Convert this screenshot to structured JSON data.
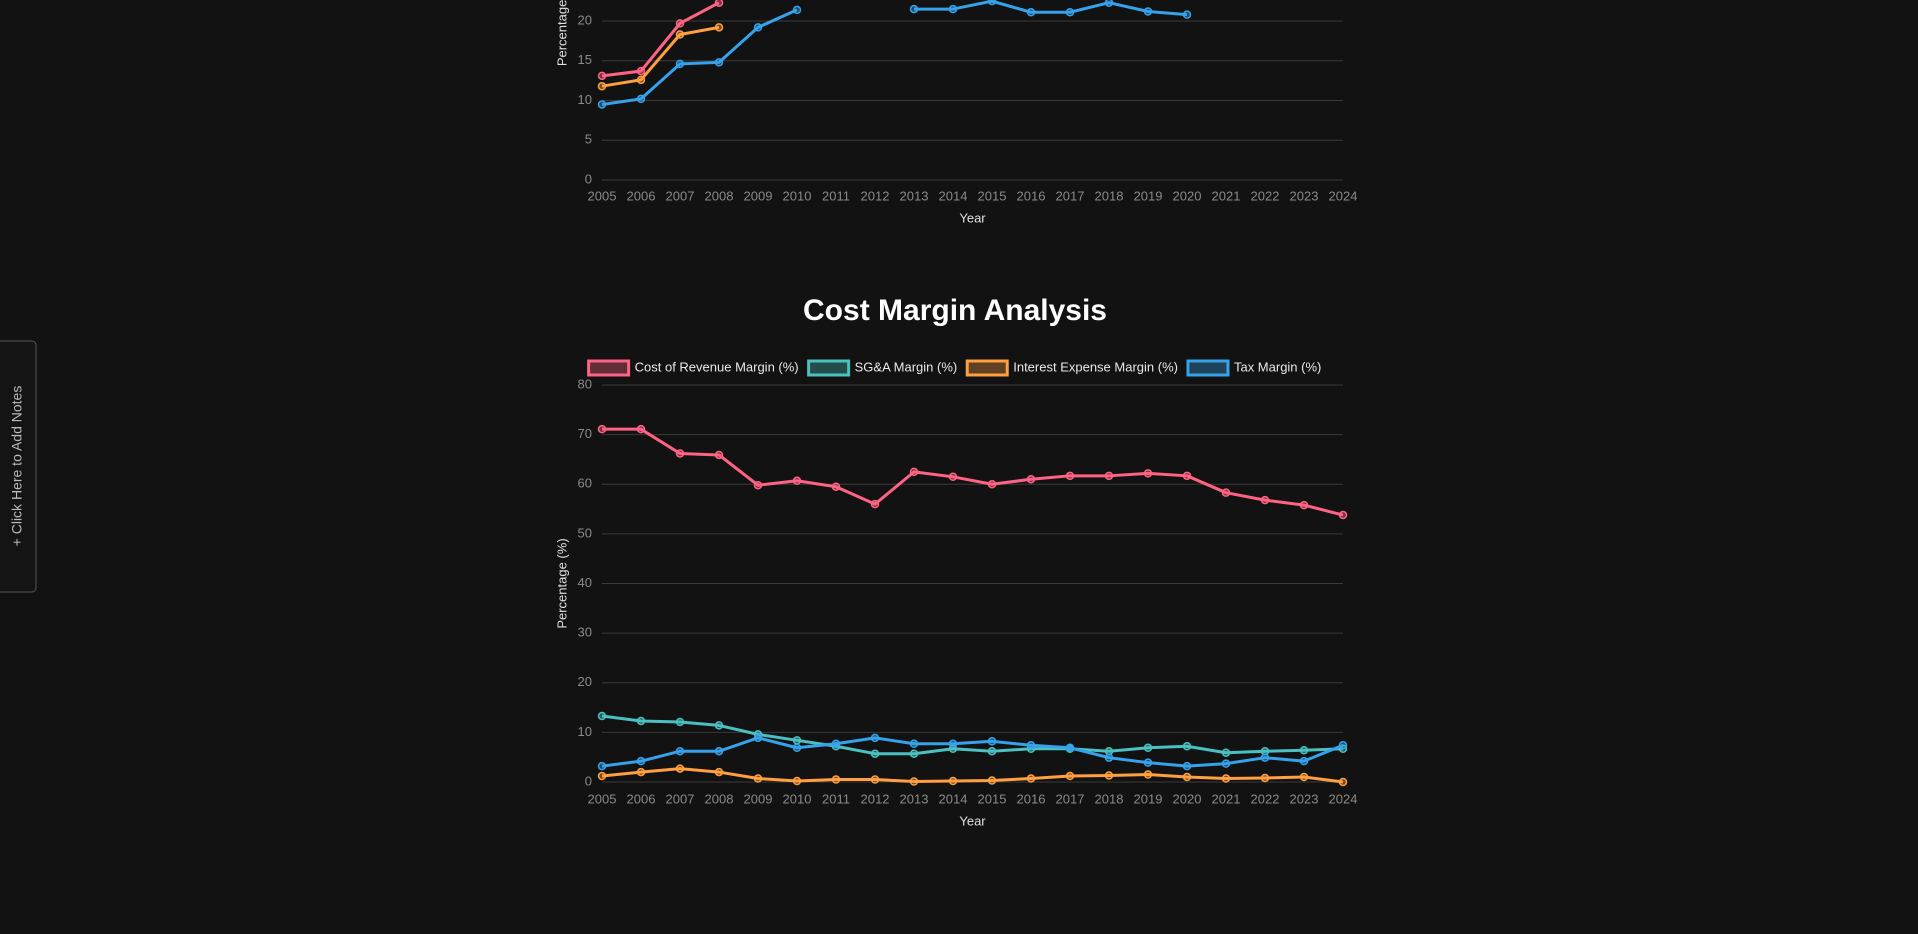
{
  "notes_tab": {
    "label": "+ Click Here to Add Notes"
  },
  "chart_data": [
    {
      "type": "line",
      "y_label": "Percentage (%)",
      "x_label": "Year",
      "categories": [
        "2005",
        "2006",
        "2007",
        "2008",
        "2009",
        "2010",
        "2011",
        "2012",
        "2013",
        "2014",
        "2015",
        "2016",
        "2017",
        "2018",
        "2019",
        "2020",
        "2021",
        "2022",
        "2023",
        "2024"
      ],
      "ylim": [
        0,
        40
      ],
      "yticks": [
        0,
        5,
        10,
        15,
        20
      ],
      "grid": true,
      "series": [
        {
          "color": "#ff6384",
          "values": [
            13.1,
            13.7,
            19.7,
            22.3,
            null,
            null,
            null,
            null,
            null,
            null,
            null,
            null,
            null,
            null,
            null,
            null,
            null,
            null,
            null,
            null
          ]
        },
        {
          "color": "#ff9f40",
          "values": [
            11.8,
            12.6,
            18.3,
            19.2,
            null,
            null,
            null,
            null,
            null,
            null,
            null,
            null,
            null,
            null,
            null,
            null,
            null,
            null,
            null,
            null
          ]
        },
        {
          "color": "#36a2eb",
          "values": [
            9.5,
            10.2,
            14.6,
            14.8,
            19.2,
            21.4,
            null,
            null,
            21.5,
            21.5,
            22.5,
            21.1,
            21.1,
            22.3,
            21.2,
            20.8,
            null,
            null,
            null,
            null
          ]
        }
      ]
    },
    {
      "type": "line",
      "title": "Cost Margin Analysis",
      "y_label": "Percentage (%)",
      "x_label": "Year",
      "categories": [
        "2005",
        "2006",
        "2007",
        "2008",
        "2009",
        "2010",
        "2011",
        "2012",
        "2013",
        "2014",
        "2015",
        "2016",
        "2017",
        "2018",
        "2019",
        "2020",
        "2021",
        "2022",
        "2023",
        "2024"
      ],
      "ylim": [
        0,
        80
      ],
      "yticks": [
        0,
        10,
        20,
        30,
        40,
        50,
        60,
        70,
        80
      ],
      "grid": true,
      "series": [
        {
          "name": "Cost of Revenue Margin (%)",
          "color": "#ff6384",
          "values": [
            71.1,
            71.1,
            66.2,
            65.9,
            59.8,
            60.7,
            59.5,
            56.0,
            62.5,
            61.5,
            60.0,
            61.0,
            61.7,
            61.7,
            62.2,
            61.7,
            58.3,
            56.8,
            55.8,
            53.8
          ]
        },
        {
          "name": "SG&A Margin (%)",
          "color": "#4bc0c0",
          "values": [
            13.3,
            12.3,
            12.1,
            11.4,
            9.6,
            8.4,
            7.2,
            5.7,
            5.7,
            6.7,
            6.2,
            6.7,
            6.7,
            6.2,
            6.9,
            7.2,
            5.9,
            6.2,
            6.4,
            6.7
          ]
        },
        {
          "name": "Interest Expense Margin (%)",
          "color": "#ff9f40",
          "values": [
            1.2,
            2.0,
            2.7,
            2.0,
            0.7,
            0.2,
            0.5,
            0.5,
            0.1,
            0.2,
            0.3,
            0.7,
            1.2,
            1.3,
            1.5,
            1.0,
            0.7,
            0.8,
            1.0,
            0.0
          ]
        },
        {
          "name": "Tax Margin (%)",
          "color": "#36a2eb",
          "values": [
            3.2,
            4.2,
            6.2,
            6.2,
            8.9,
            6.9,
            7.7,
            8.9,
            7.7,
            7.7,
            8.2,
            7.4,
            6.9,
            4.9,
            3.9,
            3.2,
            3.7,
            4.9,
            4.2,
            7.4
          ]
        }
      ]
    }
  ]
}
